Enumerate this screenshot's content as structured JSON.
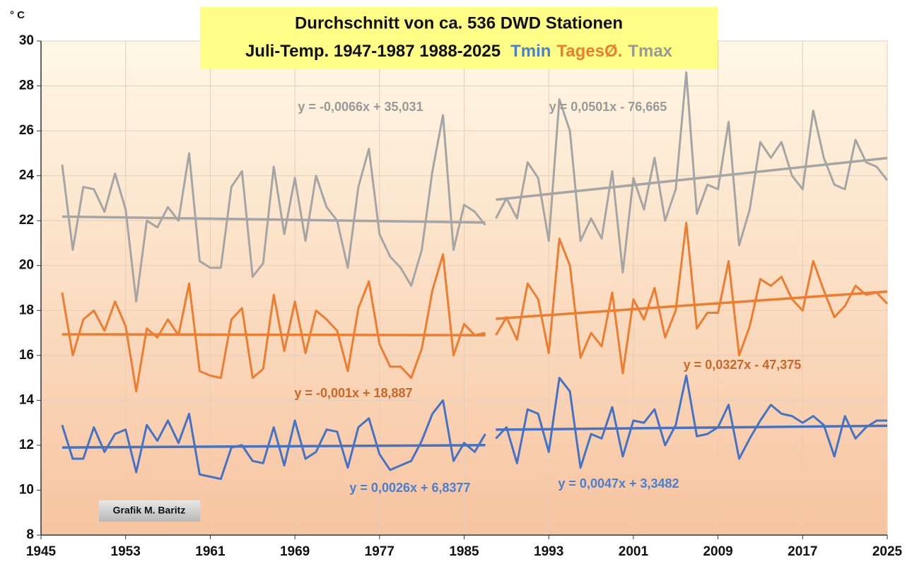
{
  "chart_data": {
    "type": "line",
    "title": [
      "Durchschnitt von ca. 536 DWD Stationen",
      "Juli-Temp. 1947-1987 1988-2025"
    ],
    "unit": "° C",
    "credit": "Grafik M. Baritz",
    "xlim": [
      1945,
      2025
    ],
    "xticks": [
      1945,
      1953,
      1961,
      1969,
      1977,
      1985,
      1993,
      2001,
      2009,
      2017,
      2025
    ],
    "ylim": [
      8,
      30
    ],
    "yticks": [
      8,
      10,
      12,
      14,
      16,
      18,
      20,
      22,
      24,
      26,
      28,
      30
    ],
    "grid": true,
    "series": [
      {
        "name": "Tmin",
        "color": "#4472c4",
        "x": [
          1947,
          1948,
          1949,
          1950,
          1951,
          1952,
          1953,
          1954,
          1955,
          1956,
          1957,
          1958,
          1959,
          1960,
          1961,
          1962,
          1963,
          1964,
          1965,
          1966,
          1967,
          1968,
          1969,
          1970,
          1971,
          1972,
          1973,
          1974,
          1975,
          1976,
          1977,
          1978,
          1979,
          1980,
          1981,
          1982,
          1983,
          1984,
          1985,
          1986,
          1987
        ],
        "values": [
          12.9,
          11.4,
          11.4,
          12.8,
          11.7,
          12.5,
          12.7,
          10.8,
          12.9,
          12.2,
          13.1,
          12.1,
          13.4,
          10.7,
          10.6,
          10.5,
          11.9,
          12.0,
          11.3,
          11.2,
          12.8,
          11.1,
          13.1,
          11.4,
          11.7,
          12.7,
          12.6,
          11.0,
          12.8,
          13.2,
          11.6,
          10.9,
          11.1,
          11.3,
          12.2,
          13.4,
          14.0,
          11.3,
          12.1,
          11.7,
          12.5
        ],
        "trend": {
          "label": "y = 0,0026x + 6,8377",
          "slope": 0.0026,
          "intercept": 6.8377
        }
      },
      {
        "name": "TagesØ.",
        "color": "#ed7d31",
        "x": [
          1947,
          1948,
          1949,
          1950,
          1951,
          1952,
          1953,
          1954,
          1955,
          1956,
          1957,
          1958,
          1959,
          1960,
          1961,
          1962,
          1963,
          1964,
          1965,
          1966,
          1967,
          1968,
          1969,
          1970,
          1971,
          1972,
          1973,
          1974,
          1975,
          1976,
          1977,
          1978,
          1979,
          1980,
          1981,
          1982,
          1983,
          1984,
          1985,
          1986,
          1987
        ],
        "values": [
          18.8,
          16.0,
          17.6,
          18.0,
          17.1,
          18.4,
          17.3,
          14.4,
          17.2,
          16.8,
          17.6,
          16.9,
          19.2,
          15.3,
          15.1,
          15.0,
          17.6,
          18.1,
          15.0,
          15.4,
          18.7,
          16.2,
          18.4,
          16.1,
          18.0,
          17.6,
          17.1,
          15.3,
          18.1,
          19.3,
          16.5,
          15.5,
          15.5,
          15.0,
          16.3,
          18.9,
          20.5,
          16.0,
          17.4,
          16.9,
          17.0
        ],
        "trend": {
          "label": "y = -0,001x + 18,887",
          "slope": -0.001,
          "intercept": 18.887
        }
      },
      {
        "name": "Tmax",
        "color": "#a5a5a5",
        "x": [
          1947,
          1948,
          1949,
          1950,
          1951,
          1952,
          1953,
          1954,
          1955,
          1956,
          1957,
          1958,
          1959,
          1960,
          1961,
          1962,
          1963,
          1964,
          1965,
          1966,
          1967,
          1968,
          1969,
          1970,
          1971,
          1972,
          1973,
          1974,
          1975,
          1976,
          1977,
          1978,
          1979,
          1980,
          1981,
          1982,
          1983,
          1984,
          1985,
          1986,
          1987
        ],
        "values": [
          24.5,
          20.7,
          23.5,
          23.4,
          22.4,
          24.1,
          22.5,
          18.4,
          22.0,
          21.7,
          22.6,
          22.0,
          25.0,
          20.2,
          19.9,
          19.9,
          23.5,
          24.2,
          19.5,
          20.1,
          24.4,
          21.4,
          23.9,
          21.1,
          24.0,
          22.6,
          22.0,
          19.9,
          23.5,
          25.2,
          21.4,
          20.4,
          19.9,
          19.1,
          20.7,
          24.2,
          26.7,
          20.7,
          22.7,
          22.4,
          21.8
        ],
        "trend": {
          "label": "y = -0,0066x + 35,031",
          "slope": -0.0066,
          "intercept": 35.031
        }
      },
      {
        "color": "#4472c4",
        "x": [
          1988,
          1989,
          1990,
          1991,
          1992,
          1993,
          1994,
          1995,
          1996,
          1997,
          1998,
          1999,
          2000,
          2001,
          2002,
          2003,
          2004,
          2005,
          2006,
          2007,
          2008,
          2009,
          2010,
          2011,
          2012,
          2013,
          2014,
          2015,
          2016,
          2017,
          2018,
          2019,
          2020,
          2021,
          2022,
          2023,
          2024,
          2025
        ],
        "values": [
          12.3,
          12.8,
          11.2,
          13.6,
          13.4,
          11.7,
          15.0,
          14.4,
          11.0,
          12.5,
          12.3,
          13.7,
          11.5,
          13.1,
          13.0,
          13.6,
          12.0,
          12.9,
          15.1,
          12.4,
          12.5,
          12.8,
          13.8,
          11.4,
          12.3,
          13.1,
          13.8,
          13.4,
          13.3,
          13.0,
          13.3,
          12.9,
          11.5,
          13.3,
          12.3,
          12.8,
          13.1,
          13.1
        ],
        "trend": {
          "label": "y = 0,0047x + 3,3482",
          "slope": 0.0047,
          "intercept": 3.3482
        }
      },
      {
        "color": "#ed7d31",
        "x": [
          1988,
          1989,
          1990,
          1991,
          1992,
          1993,
          1994,
          1995,
          1996,
          1997,
          1998,
          1999,
          2000,
          2001,
          2002,
          2003,
          2004,
          2005,
          2006,
          2007,
          2008,
          2009,
          2010,
          2011,
          2012,
          2013,
          2014,
          2015,
          2016,
          2017,
          2018,
          2019,
          2020,
          2021,
          2022,
          2023,
          2024,
          2025
        ],
        "values": [
          16.9,
          17.7,
          16.7,
          19.2,
          18.5,
          16.1,
          21.2,
          20.0,
          15.9,
          17.0,
          16.4,
          18.8,
          15.2,
          18.5,
          17.6,
          19.0,
          16.8,
          18.0,
          21.9,
          17.2,
          17.9,
          17.9,
          20.2,
          16.0,
          17.3,
          19.4,
          19.1,
          19.5,
          18.5,
          18.0,
          20.2,
          18.9,
          17.7,
          18.2,
          19.1,
          18.7,
          18.8,
          18.3
        ],
        "trend": {
          "label": "y = 0,0327x - 47,375",
          "slope": 0.0327,
          "intercept": -47.375
        }
      },
      {
        "color": "#a5a5a5",
        "x": [
          1988,
          1989,
          1990,
          1991,
          1992,
          1993,
          1994,
          1995,
          1996,
          1997,
          1998,
          1999,
          2000,
          2001,
          2002,
          2003,
          2004,
          2005,
          2006,
          2007,
          2008,
          2009,
          2010,
          2011,
          2012,
          2013,
          2014,
          2015,
          2016,
          2017,
          2018,
          2019,
          2020,
          2021,
          2022,
          2023,
          2024,
          2025
        ],
        "values": [
          22.1,
          23.0,
          22.1,
          24.6,
          23.9,
          21.1,
          27.4,
          26.0,
          21.1,
          22.1,
          21.2,
          24.2,
          19.7,
          23.9,
          22.5,
          24.8,
          22.0,
          23.4,
          28.6,
          22.3,
          23.6,
          23.4,
          26.4,
          20.9,
          22.5,
          25.5,
          24.8,
          25.5,
          24.0,
          23.4,
          26.9,
          24.8,
          23.6,
          23.4,
          25.6,
          24.6,
          24.4,
          23.8
        ],
        "trend": {
          "label": "y = 0,0501x - 76,665",
          "slope": 0.0501,
          "intercept": -76.665
        }
      }
    ]
  }
}
